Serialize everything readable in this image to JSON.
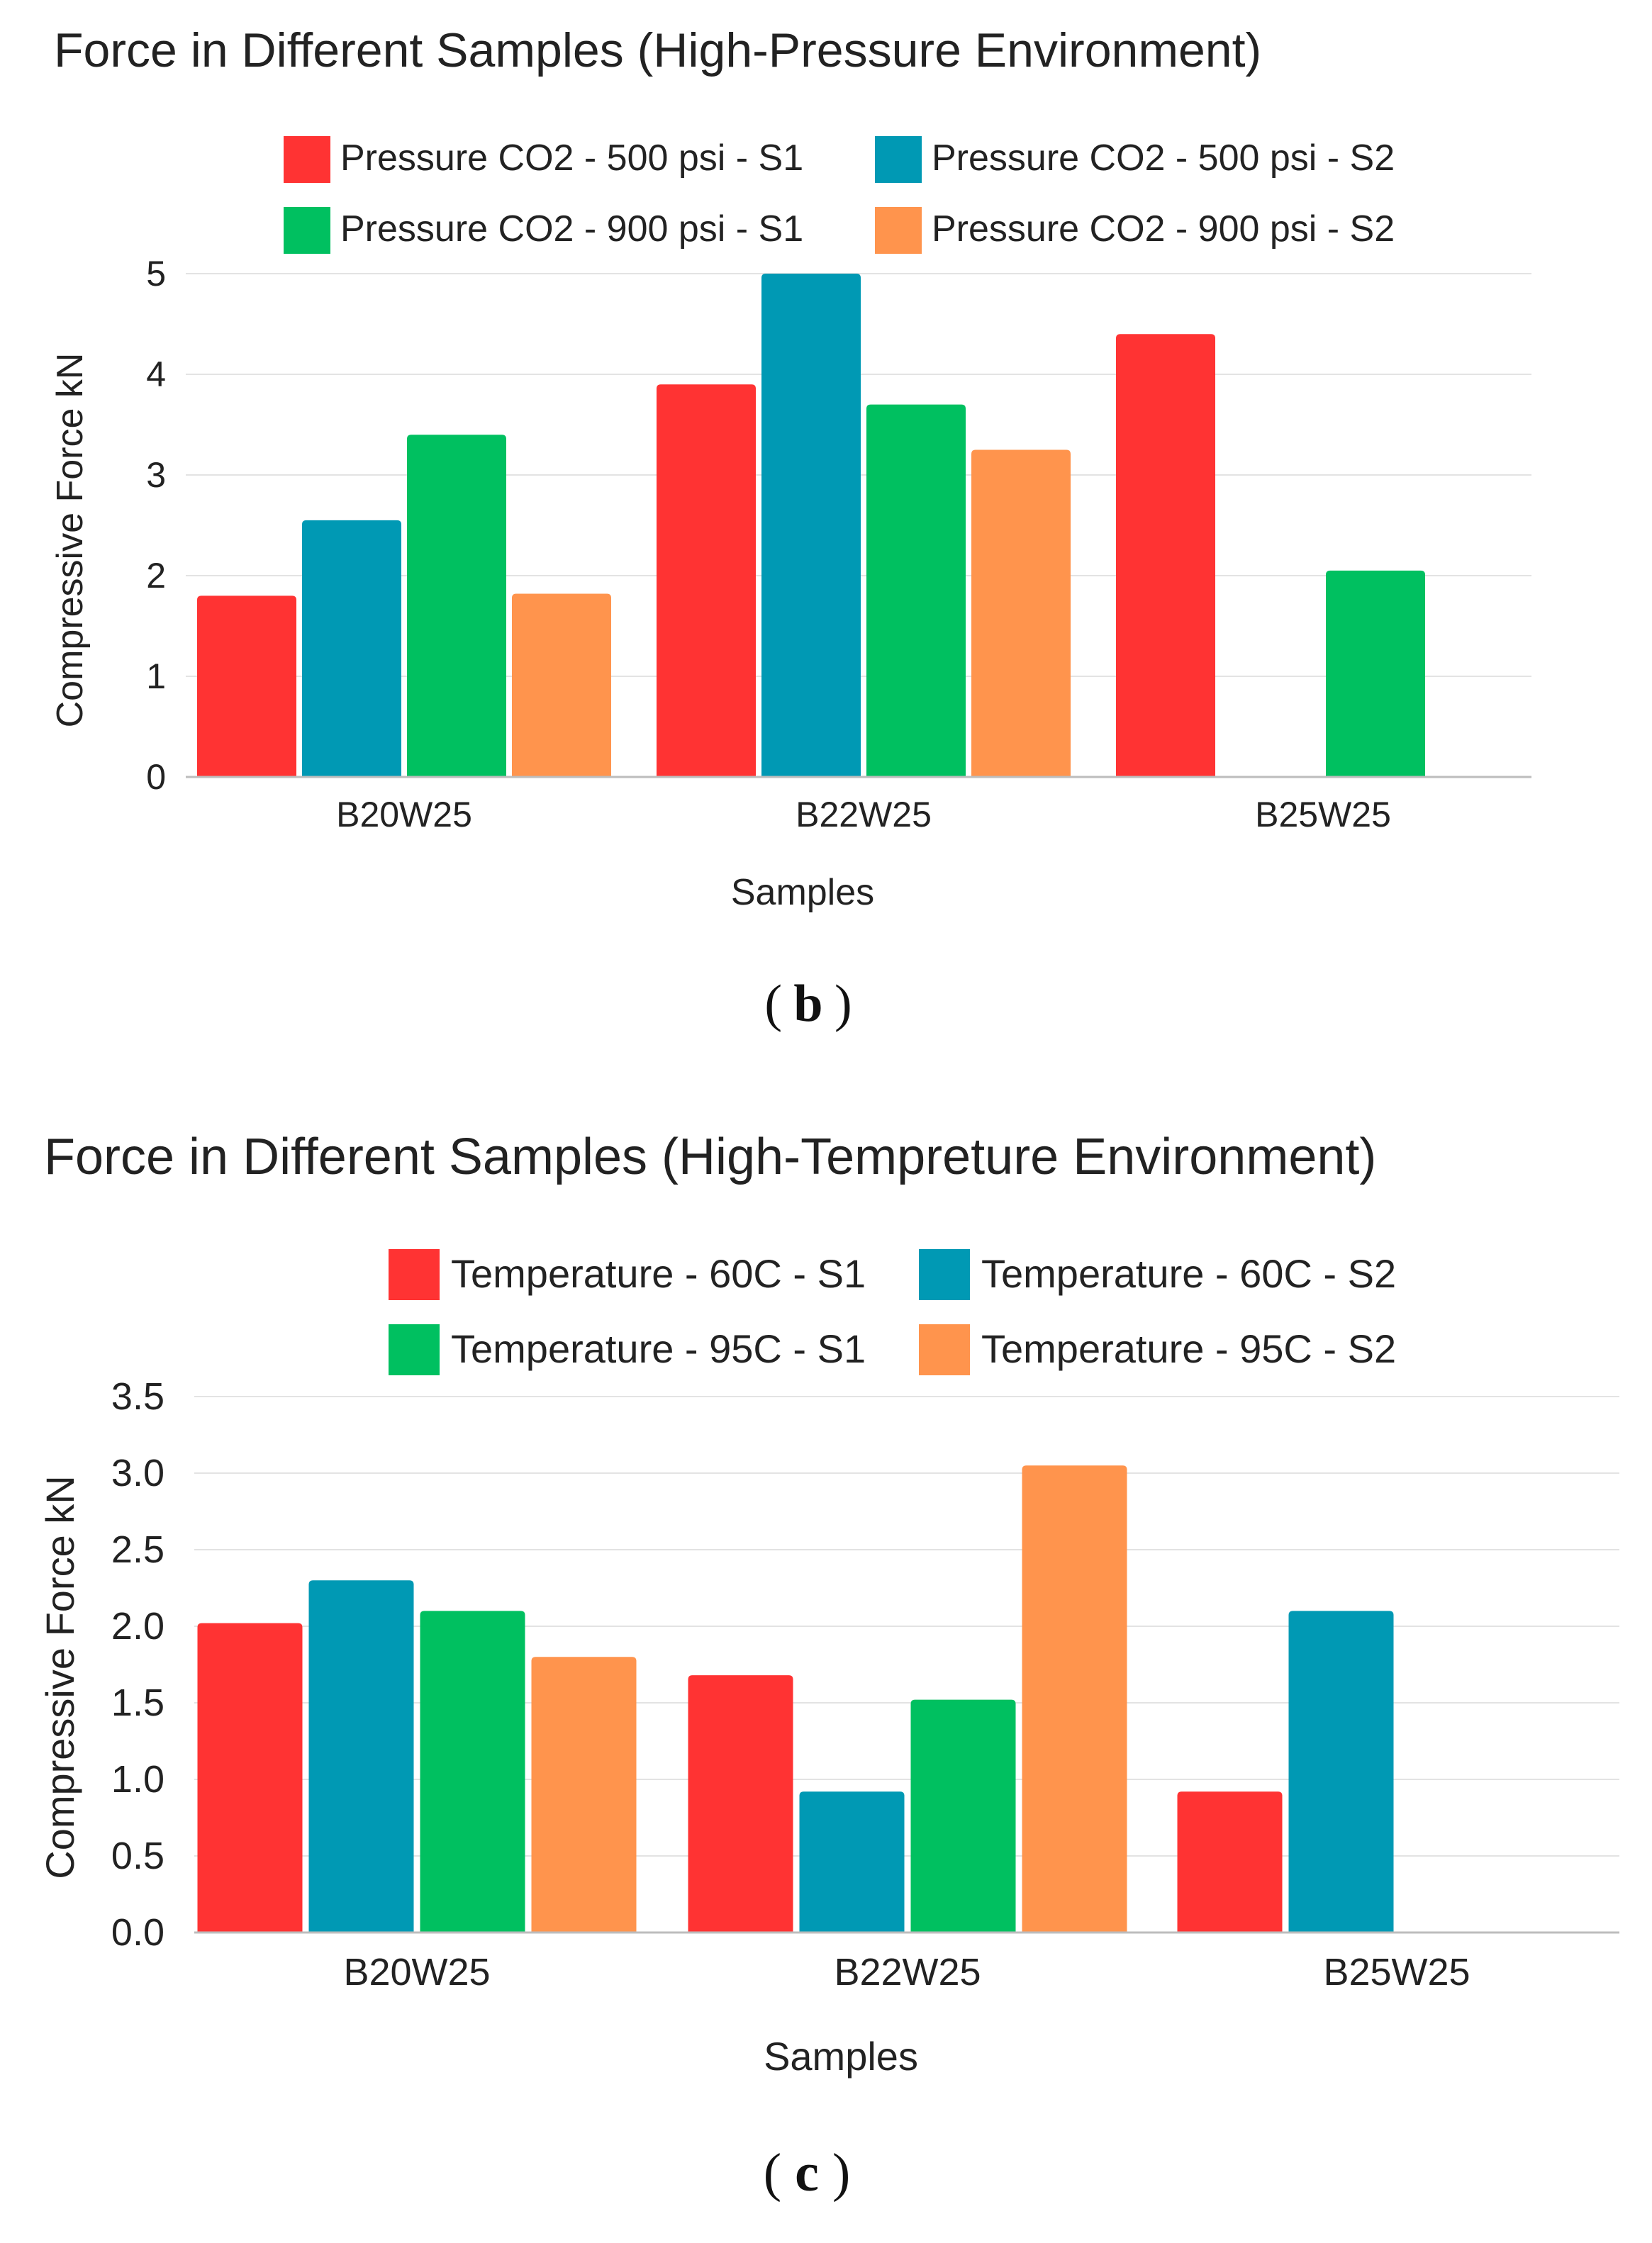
{
  "chart_data": [
    {
      "type": "bar",
      "title": "Force in Different Samples (High-Pressure Environment)",
      "xlabel": "Samples",
      "ylabel": "Compressive Force kN",
      "categories": [
        "B20W25",
        "B22W25",
        "B25W25"
      ],
      "ylim": [
        0,
        5
      ],
      "yticks": [
        "0",
        "1",
        "2",
        "3",
        "4",
        "5"
      ],
      "legend_position": "top",
      "series": [
        {
          "name": "Pressure CO2 - 500 psi - S1",
          "color": "#ff3333",
          "values": [
            1.8,
            3.9,
            4.4
          ]
        },
        {
          "name": "Pressure CO2 - 500 psi - S2",
          "color": "#0099b4",
          "values": [
            2.55,
            5.0,
            null
          ]
        },
        {
          "name": "Pressure CO2 - 900 psi - S1",
          "color": "#00c060",
          "values": [
            3.4,
            3.7,
            2.05
          ]
        },
        {
          "name": "Pressure CO2 - 900 psi - S2",
          "color": "#ff944d",
          "values": [
            1.82,
            3.25,
            null
          ]
        }
      ],
      "panel_label": "b"
    },
    {
      "type": "bar",
      "title": "Force in Different Samples (High-Tempreture Environment)",
      "xlabel": "Samples",
      "ylabel": "Compressive Force kN",
      "categories": [
        "B20W25",
        "B22W25",
        "B25W25"
      ],
      "ylim": [
        0,
        3.5
      ],
      "yticks": [
        "0.0",
        "0.5",
        "1.0",
        "1.5",
        "2.0",
        "2.5",
        "3.0",
        "3.5"
      ],
      "legend_position": "top",
      "series": [
        {
          "name": "Temperature - 60C - S1",
          "color": "#ff3333",
          "values": [
            2.02,
            1.68,
            0.92
          ]
        },
        {
          "name": "Temperature - 60C - S2",
          "color": "#0099b4",
          "values": [
            2.3,
            0.92,
            2.1
          ]
        },
        {
          "name": "Temperature - 95C - S1",
          "color": "#00c060",
          "values": [
            2.1,
            1.52,
            null
          ]
        },
        {
          "name": "Temperature - 95C - S2",
          "color": "#ff944d",
          "values": [
            1.8,
            3.05,
            null
          ]
        }
      ],
      "panel_label": "c"
    }
  ]
}
